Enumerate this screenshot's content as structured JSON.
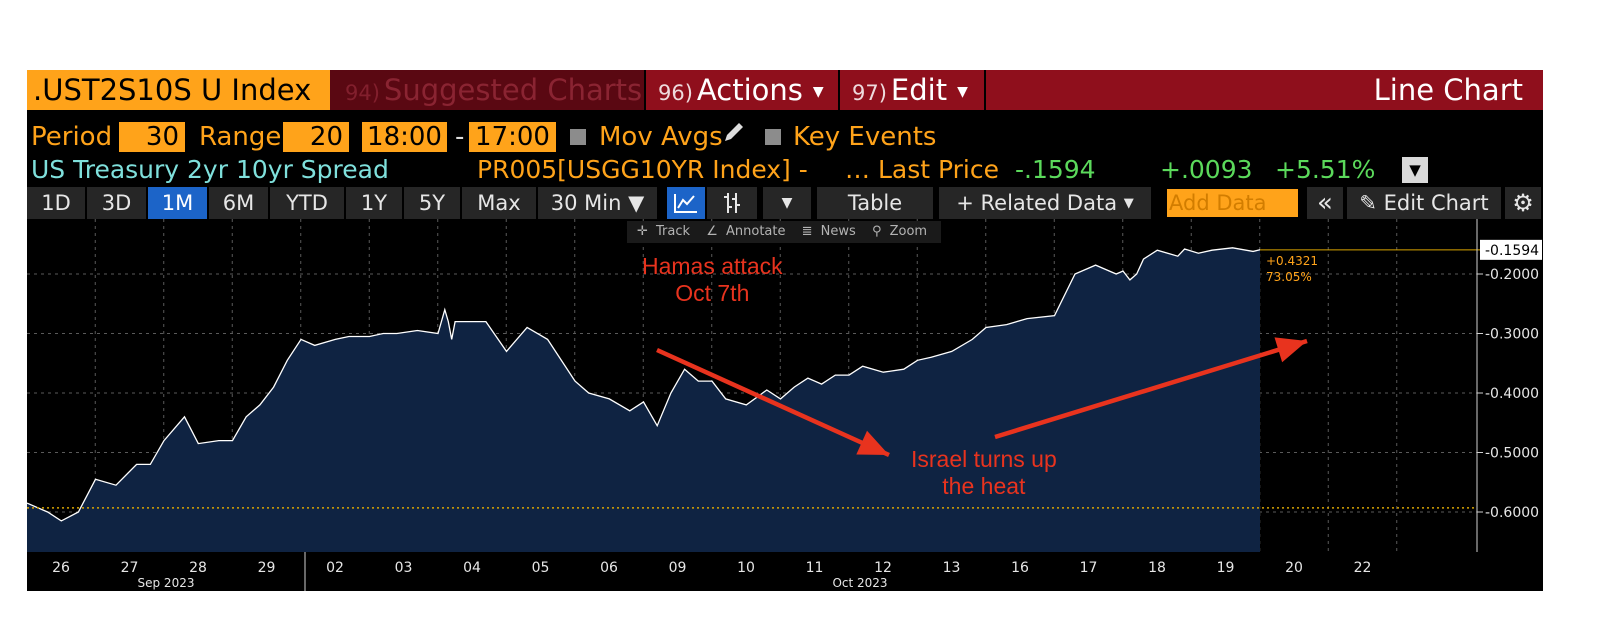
{
  "header": {
    "ticker": ".UST2S10S U Index",
    "suggested_num": "94)",
    "suggested_label": "Suggested Charts",
    "actions_num": "96)",
    "actions_label": "Actions",
    "edit_num": "97)",
    "edit_label": "Edit",
    "chart_type": "Line Chart"
  },
  "settings": {
    "period_label": "Period",
    "period_value": "30",
    "range_label": "Range",
    "range_value": "20",
    "time_from": "18:00",
    "time_sep": "-",
    "time_to": "17:00",
    "mov_avgs": "Mov Avgs",
    "key_events": "Key Events"
  },
  "security": {
    "description": "US Treasury 2yr 10yr Spread",
    "secondary": "PR005[USGG10YR Index] -",
    "field": "… Last Price",
    "last": "-.1594",
    "change": "+.0093",
    "pct_change": "+5.51%"
  },
  "toolbar": {
    "periods": [
      "1D",
      "3D",
      "1M",
      "6M",
      "YTD",
      "1Y",
      "5Y",
      "Max"
    ],
    "active_period": "1M",
    "interval": "30 Min ▼",
    "table": "Table",
    "related": "+ Related Data",
    "add_data": "Add Data",
    "edit_chart": "Edit Chart"
  },
  "mini_toolbar": {
    "track": "Track",
    "annotate": "Annotate",
    "news": "News",
    "zoom": "Zoom"
  },
  "annotations": [
    {
      "line1": "Hamas attack",
      "line2": "Oct 7th"
    },
    {
      "line1": "Israel turns up",
      "line2": "the heat"
    }
  ],
  "colors": {
    "title_bar": "#8f0f1c",
    "accent_orange": "#ffa31a",
    "area_fill": "#0f2342",
    "line": "#ffffff",
    "annotation_red": "#e8331e",
    "value_green": "#5bd95b",
    "desc_cyan": "#7fe0dc"
  },
  "chart_data": {
    "type": "area",
    "title": "US Treasury 2yr 10yr Spread",
    "ylim": [
      -0.65,
      -0.14
    ],
    "y_ticks": [
      "-0.2000",
      "-0.3000",
      "-0.4000",
      "-0.5000",
      "-0.6000"
    ],
    "y_tick_values": [
      -0.2,
      -0.3,
      -0.4,
      -0.5,
      -0.6
    ],
    "reference_line": -0.593,
    "last_value_label": "-0.1594",
    "last_value": -0.1594,
    "stat_change": "+0.4321",
    "stat_pct": "73.05%",
    "x_ticks": [
      "26",
      "27",
      "28",
      "29",
      "02",
      "03",
      "04",
      "05",
      "06",
      "09",
      "10",
      "11",
      "12",
      "13",
      "16",
      "17",
      "18",
      "19",
      "20",
      "22"
    ],
    "month_labels": [
      "Sep 2023",
      "Oct 2023"
    ],
    "x": [
      0,
      0.3,
      0.5,
      0.75,
      1,
      1.3,
      1.6,
      1.8,
      2,
      2.3,
      2.5,
      2.8,
      3,
      3.2,
      3.4,
      3.6,
      3.8,
      4,
      4.2,
      4.5,
      4.7,
      5,
      5.2,
      5.4,
      5.7,
      6,
      6.1,
      6.15,
      6.2,
      6.25,
      6.35,
      6.5,
      6.7,
      7,
      7.3,
      7.6,
      8,
      8.2,
      8.5,
      8.8,
      9,
      9.2,
      9.4,
      9.6,
      9.8,
      10,
      10.2,
      10.5,
      10.8,
      11,
      11.2,
      11.4,
      11.6,
      11.8,
      12,
      12.2,
      12.5,
      12.8,
      13,
      13.2,
      13.5,
      13.8,
      14,
      14.3,
      14.6,
      15,
      15.3,
      15.6,
      15.9,
      16,
      16.1,
      16.2,
      16.3,
      16.5,
      16.8,
      16.9,
      17.1,
      17.3,
      17.6,
      17.9,
      18
    ],
    "values": [
      -0.585,
      -0.6,
      -0.615,
      -0.6,
      -0.545,
      -0.555,
      -0.52,
      -0.52,
      -0.48,
      -0.44,
      -0.485,
      -0.48,
      -0.48,
      -0.44,
      -0.42,
      -0.39,
      -0.345,
      -0.31,
      -0.32,
      -0.31,
      -0.305,
      -0.305,
      -0.3,
      -0.3,
      -0.295,
      -0.3,
      -0.26,
      -0.28,
      -0.31,
      -0.28,
      -0.28,
      -0.28,
      -0.28,
      -0.33,
      -0.29,
      -0.31,
      -0.38,
      -0.4,
      -0.41,
      -0.43,
      -0.415,
      -0.455,
      -0.4,
      -0.36,
      -0.38,
      -0.38,
      -0.41,
      -0.42,
      -0.395,
      -0.41,
      -0.39,
      -0.375,
      -0.385,
      -0.37,
      -0.37,
      -0.355,
      -0.365,
      -0.36,
      -0.345,
      -0.34,
      -0.33,
      -0.31,
      -0.29,
      -0.285,
      -0.275,
      -0.27,
      -0.2,
      -0.185,
      -0.2,
      -0.195,
      -0.21,
      -0.2,
      -0.175,
      -0.16,
      -0.17,
      -0.158,
      -0.165,
      -0.16,
      -0.156,
      -0.162,
      -0.1594
    ]
  }
}
